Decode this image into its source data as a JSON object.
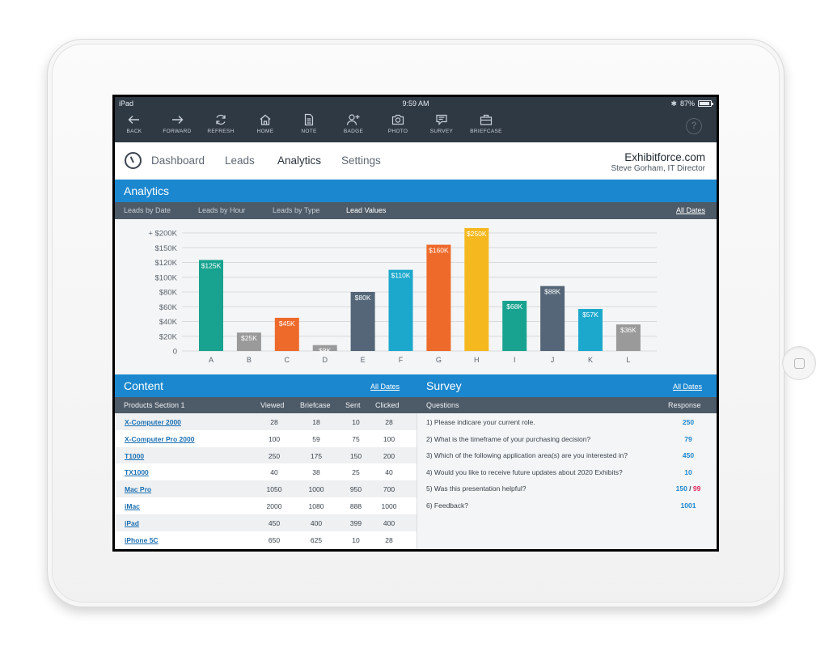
{
  "status_bar": {
    "device": "iPad",
    "time": "9:59 AM",
    "battery": "87%"
  },
  "toolbar": {
    "items": [
      {
        "label": "BACK",
        "icon": "arrow-left-icon"
      },
      {
        "label": "FORWARD",
        "icon": "arrow-right-icon"
      },
      {
        "label": "REFRESH",
        "icon": "refresh-icon"
      },
      {
        "label": "HOME",
        "icon": "home-icon"
      },
      {
        "label": "NOTE",
        "icon": "note-icon"
      },
      {
        "label": "BADGE",
        "icon": "badge-icon"
      },
      {
        "label": "PHOTO",
        "icon": "camera-icon"
      },
      {
        "label": "SURVEY",
        "icon": "survey-icon"
      },
      {
        "label": "BRIEFCASE",
        "icon": "briefcase-icon"
      }
    ],
    "help_icon": "?"
  },
  "nav": {
    "items": [
      "Dashboard",
      "Leads",
      "Analytics",
      "Settings"
    ],
    "active": "Analytics",
    "brand": "Exhibitforce.com",
    "user": "Steve Gorham, IT Director"
  },
  "analytics": {
    "title": "Analytics",
    "tabs": [
      "Leads by Date",
      "Leads by Hour",
      "Leads by Type",
      "Lead Values"
    ],
    "active_tab": "Lead Values",
    "all_dates": "All Dates"
  },
  "chart_data": {
    "type": "bar",
    "categories": [
      "A",
      "B",
      "C",
      "D",
      "E",
      "F",
      "G",
      "H",
      "I",
      "J",
      "K",
      "L"
    ],
    "values": [
      125,
      25,
      45,
      8,
      80,
      110,
      160,
      250,
      68,
      88,
      57,
      36
    ],
    "data_labels": [
      "$125K",
      "$25K",
      "$45K",
      "$8K",
      "$80K",
      "$110K",
      "$160K",
      "$250K",
      "$68K",
      "$88K",
      "$57K",
      "$36K"
    ],
    "colors": [
      "#17a38f",
      "#9a9a9a",
      "#ee6a2a",
      "#9a9a9a",
      "#546678",
      "#1ba8cc",
      "#ee6a2a",
      "#f5b81f",
      "#17a38f",
      "#546678",
      "#1ba8cc",
      "#9a9a9a"
    ],
    "y_tick_labels": [
      "0",
      "$20K",
      "$40K",
      "$60K",
      "$80K",
      "$100K",
      "$120K",
      "$150K",
      "+ $200K"
    ],
    "y_tick_values": [
      0,
      20,
      40,
      60,
      80,
      100,
      120,
      150,
      200
    ],
    "grid": true,
    "title": "",
    "xlabel": "",
    "ylabel": ""
  },
  "content": {
    "title": "Content",
    "all_dates": "All Dates",
    "headers": [
      "Products Section 1",
      "Viewed",
      "Briefcase",
      "Sent",
      "Clicked"
    ],
    "rows": [
      [
        "X-Computer 2000",
        "28",
        "18",
        "10",
        "28"
      ],
      [
        "X-Computer Pro 2000",
        "100",
        "59",
        "75",
        "100"
      ],
      [
        "T1000",
        "250",
        "175",
        "150",
        "200"
      ],
      [
        "TX1000",
        "40",
        "38",
        "25",
        "40"
      ],
      [
        "Mac Pro",
        "1050",
        "1000",
        "950",
        "700"
      ],
      [
        "iMac",
        "2000",
        "1080",
        "888",
        "1000"
      ],
      [
        "iPad",
        "450",
        "400",
        "399",
        "400"
      ],
      [
        "iPhone 5C",
        "650",
        "625",
        "10",
        "28"
      ]
    ]
  },
  "survey": {
    "title": "Survey",
    "all_dates": "All Dates",
    "headers": [
      "Questions",
      "Response"
    ],
    "rows": [
      {
        "q": "1) Please indicare your current role.",
        "r": "250"
      },
      {
        "q": "2) What is the timeframe of your purchasing decision?",
        "r": "79"
      },
      {
        "q": "3) Which of the following application area(s) are you interested in?",
        "r": "450"
      },
      {
        "q": "4) Would you like to receive future updates about 2020 Exhibits?",
        "r": "10"
      },
      {
        "q": "5) Was this presentation helpful?",
        "r": "150",
        "sep": " / ",
        "r_neg": "99"
      },
      {
        "q": "6) Feedback?",
        "r": "1001"
      }
    ]
  },
  "colors": {
    "accent": "#1b87cf",
    "toolbar": "#2f3944",
    "subbar": "#4d5a67",
    "link": "#1b6fb1",
    "negative": "#e0245e"
  }
}
